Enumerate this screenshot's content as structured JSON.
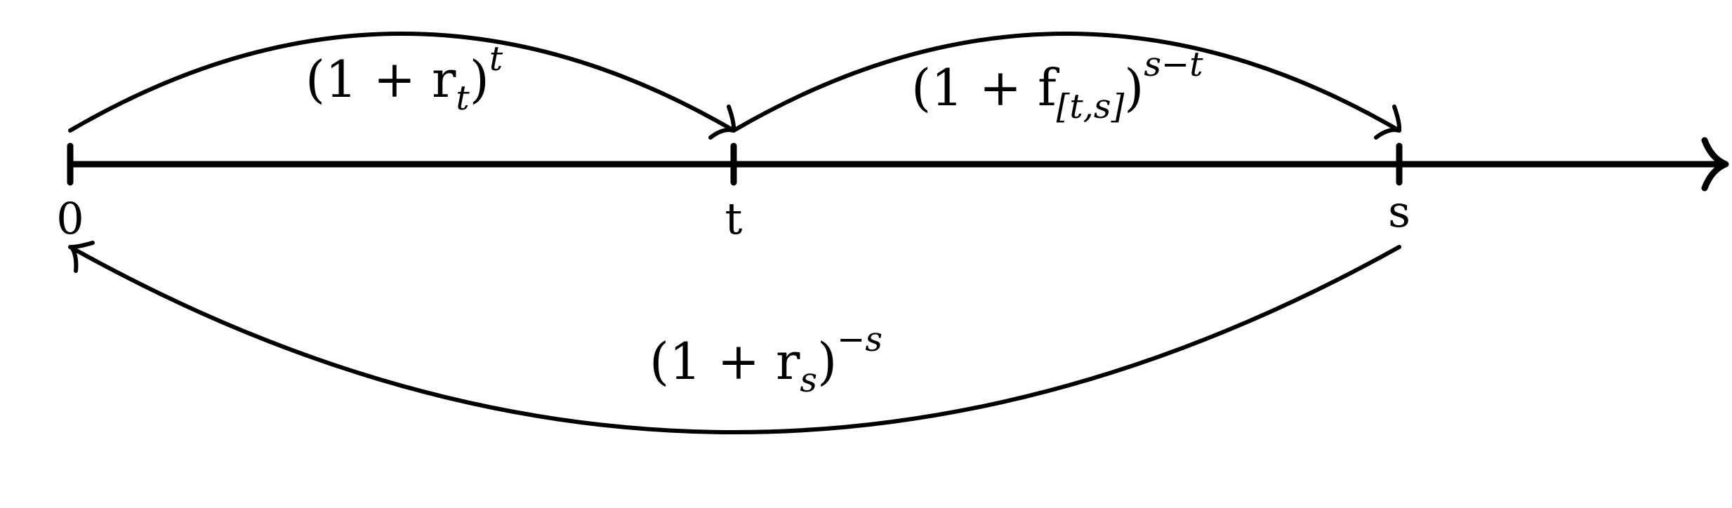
{
  "timeline": {
    "tick_labels": [
      "0",
      "t",
      "s"
    ]
  },
  "arcs": {
    "spot_t": {
      "base": "(1 + r",
      "subscript": "t",
      "close": ")",
      "exponent": "t"
    },
    "forward": {
      "base": "(1 + f",
      "subscript": "[t,s]",
      "close": ")",
      "exponent": "s−t"
    },
    "discount_s": {
      "base": "(1 + r",
      "subscript": "s",
      "close": ")",
      "exponent": "−s"
    }
  },
  "colors": {
    "ink": "#000000",
    "background": "#ffffff"
  }
}
